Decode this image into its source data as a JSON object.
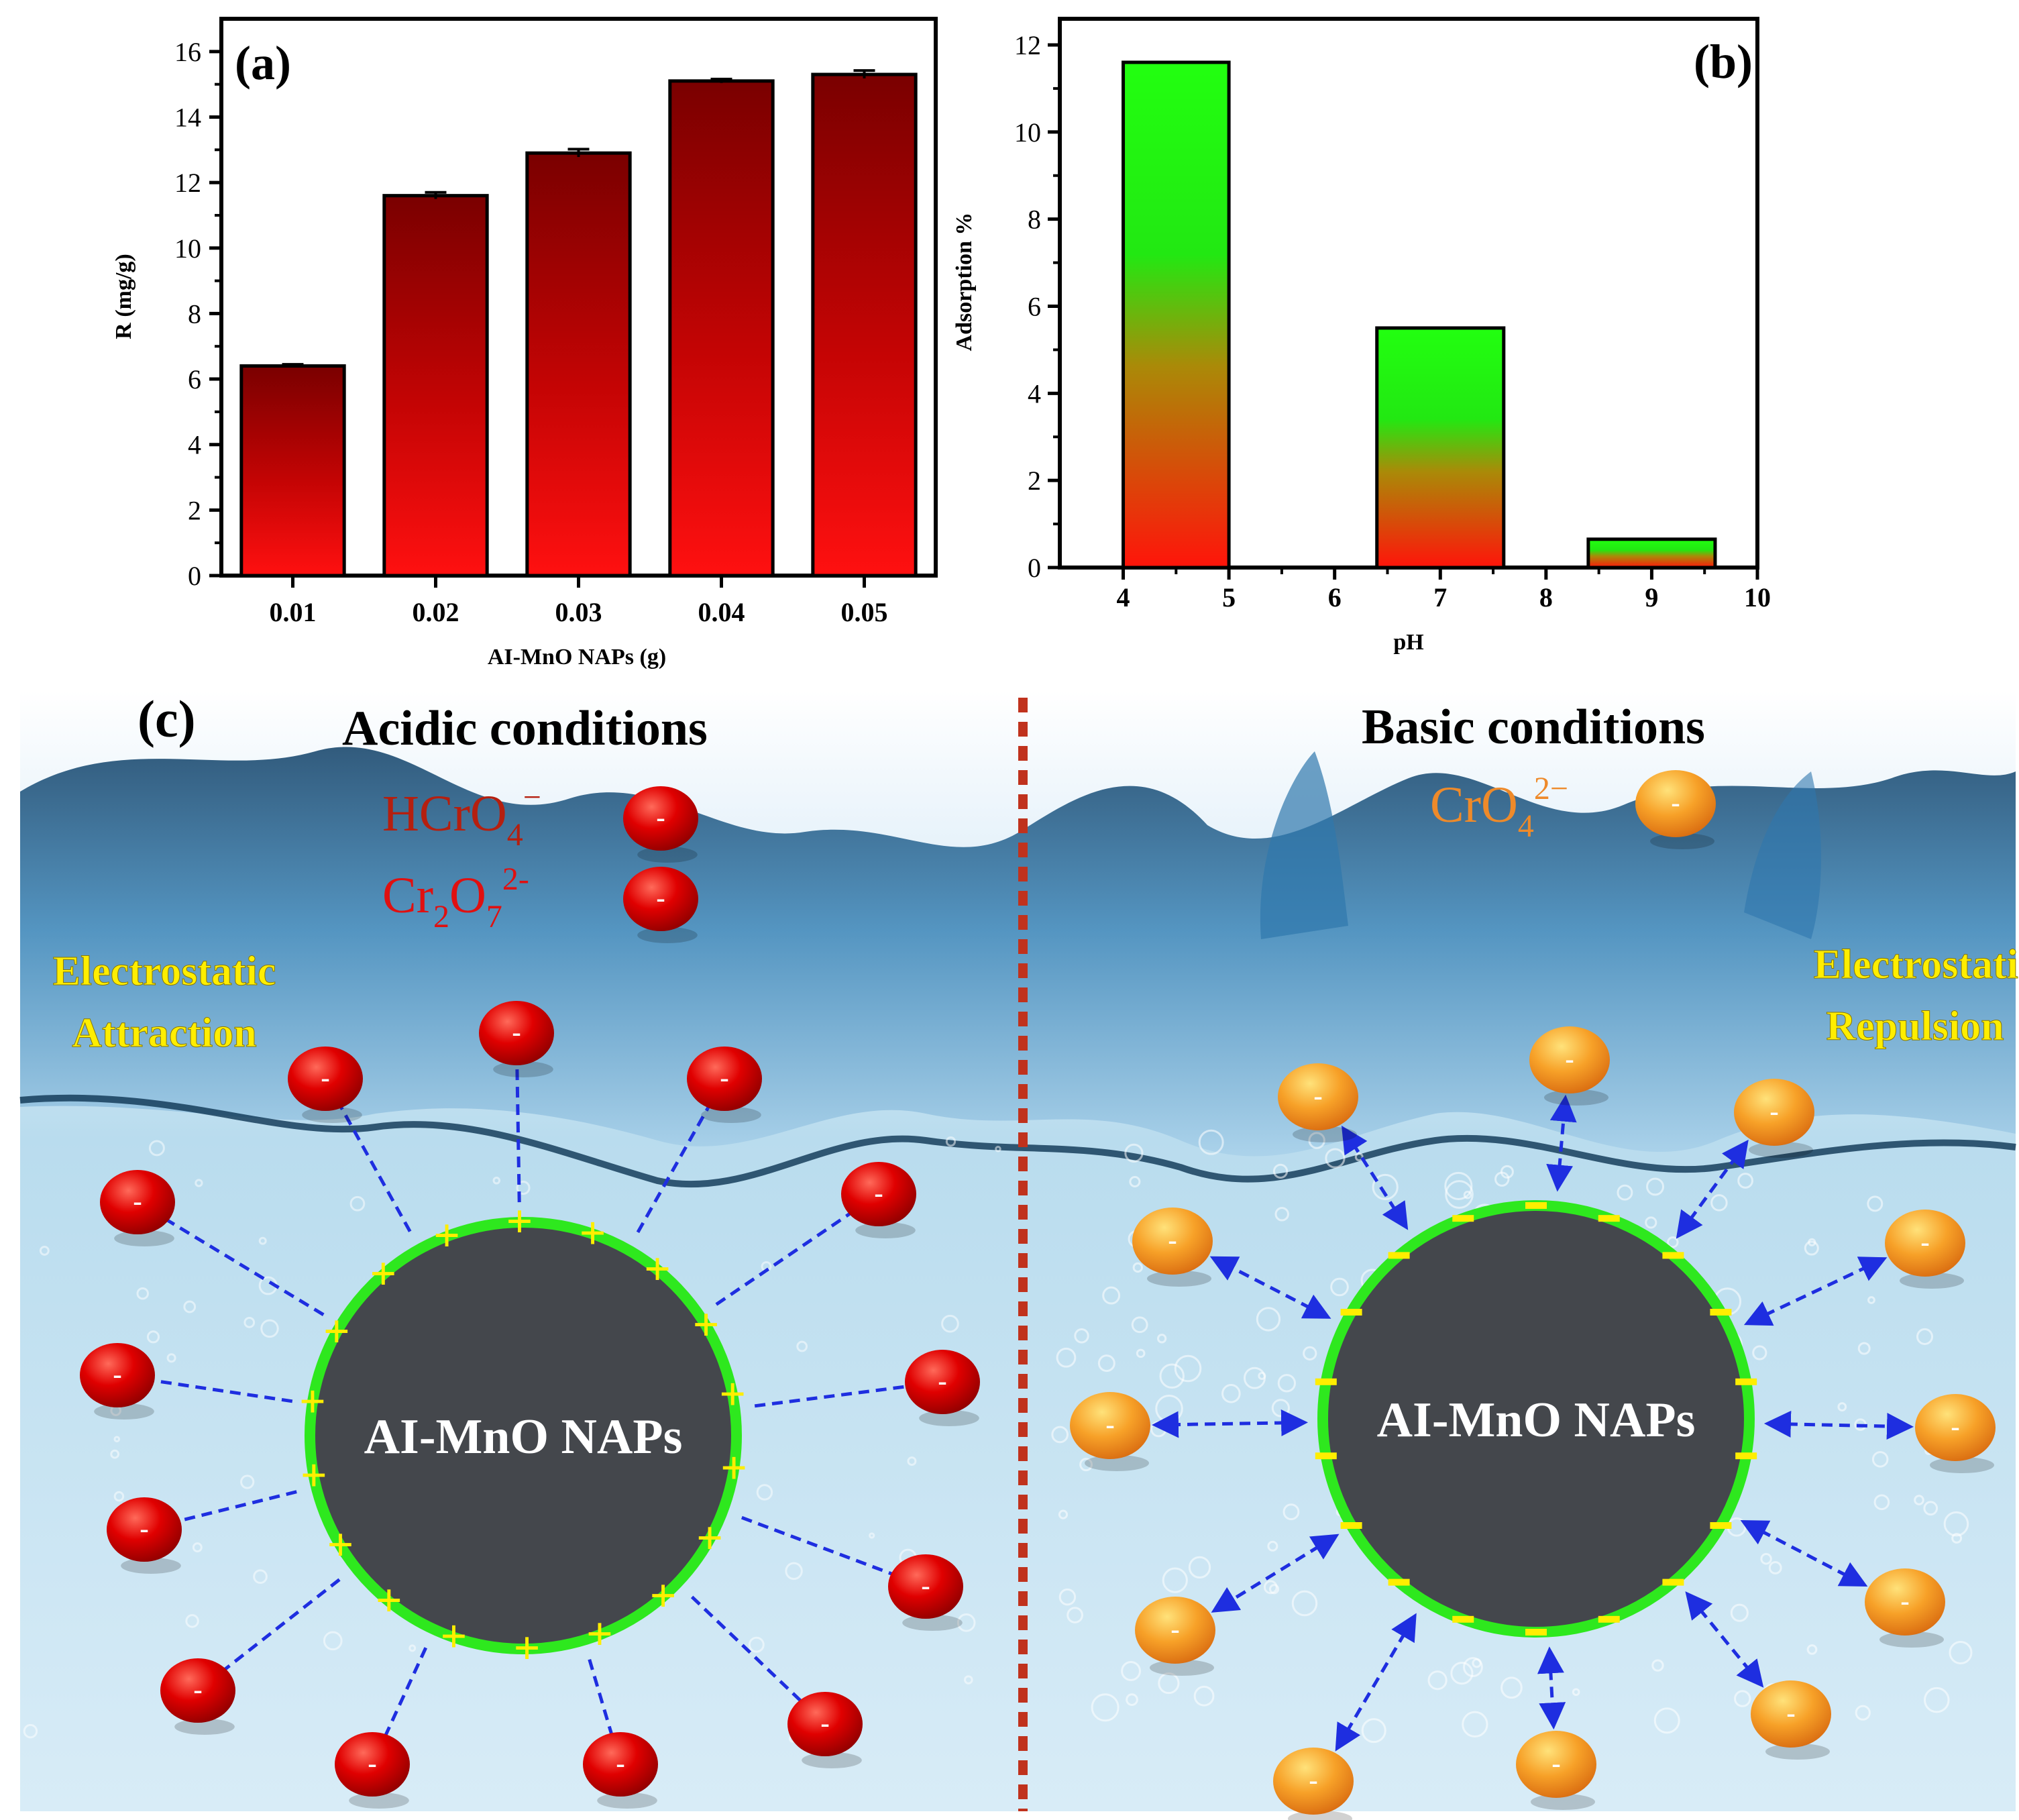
{
  "chart_data": [
    {
      "type": "bar",
      "panel_label": "(a)",
      "title": "",
      "xlabel": "AI-MnO NAPs (g)",
      "ylabel": "R (mg/g)",
      "categories": [
        "0.01",
        "0.02",
        "0.03",
        "0.04",
        "0.05"
      ],
      "values": [
        6.4,
        11.6,
        12.9,
        15.1,
        15.3
      ],
      "errors": [
        0.05,
        0.1,
        0.12,
        0.06,
        0.12
      ],
      "ylim": [
        0,
        17
      ],
      "yticks": [
        "0",
        "2",
        "4",
        "6",
        "8",
        "10",
        "12",
        "14",
        "16"
      ],
      "colors": {
        "bar_top": "#8b0000",
        "bar_bottom": "#ff0d0d"
      }
    },
    {
      "type": "bar",
      "panel_label": "(b)",
      "title": "",
      "xlabel": "pH",
      "ylabel": "Adsorption %",
      "categories": [
        "4.5",
        "7",
        "9"
      ],
      "bar_ranges": [
        [
          4,
          5
        ],
        [
          6.4,
          7.6
        ],
        [
          8.4,
          9.6
        ]
      ],
      "values": [
        11.6,
        5.5,
        0.65
      ],
      "xlim": [
        3.4,
        10
      ],
      "xticks": [
        "4",
        "5",
        "6",
        "7",
        "8",
        "9",
        "10"
      ],
      "ylim": [
        0,
        12.6
      ],
      "yticks": [
        "0",
        "2",
        "4",
        "6",
        "8",
        "10",
        "12"
      ],
      "colors": {
        "bar_top": "#22ff11",
        "bar_bottom": "#ff1a0a"
      }
    }
  ],
  "diagram": {
    "panel_label": "(c)",
    "acidic": {
      "title": "Acidic conditions",
      "species1": {
        "base": "HCrO",
        "sub": "4",
        "sup": "−"
      },
      "species2": {
        "part1": "Cr",
        "sub1": "2",
        "part2": "O",
        "sub2": "7",
        "sup": "2-"
      },
      "effect_line1": "Electrostatic",
      "effect_line2": "Attraction",
      "particle_label": "AI-MnO NAPs",
      "surface_charge": "+",
      "ion_charge": "-"
    },
    "basic": {
      "title": "Basic conditions",
      "species1": {
        "base": "CrO",
        "sub": "4",
        "sup": "2−"
      },
      "effect_line1": "Electrostatic",
      "effect_line2": "Repulsion",
      "particle_label": "AI-MnO NAPs",
      "surface_charge": "-",
      "ion_charge": "-"
    },
    "colors": {
      "acidic_ion": "#e00000",
      "basic_ion": "#f39a1c",
      "particle_fill": "#44474c",
      "particle_ring": "#2ee81e",
      "effect_text": "#ffee00",
      "species_red": "#b51f0f",
      "species_orange": "#ee8a2a",
      "divider": "#c0321d",
      "connector": "#1e2ee0"
    }
  }
}
